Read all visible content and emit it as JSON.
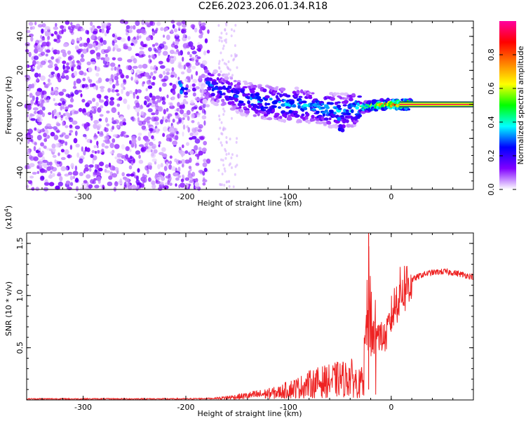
{
  "title": "C2E6.2023.206.01.34.R18",
  "colors": {
    "snr_line": "#ee2222",
    "axis": "#000000",
    "background": "#ffffff"
  },
  "chart_data": [
    {
      "type": "heatmap",
      "title": "C2E6.2023.206.01.34.R18",
      "xlabel": "Height of straight line (km)",
      "ylabel": "Frequency (Hz)",
      "xlim": [
        -355,
        80
      ],
      "ylim": [
        -50,
        49
      ],
      "xticks": [
        -300,
        -200,
        -100,
        0
      ],
      "yticks": [
        -40,
        -20,
        0,
        20,
        40
      ],
      "colorbar": {
        "label": "Normalized spectral amplitude",
        "range": [
          0,
          1
        ],
        "ticks": [
          0.0,
          0.2,
          0.4,
          0.6,
          0.8
        ],
        "colormap": [
          "#ffffff",
          "#8000ff",
          "#0000ff",
          "#00ffff",
          "#00ff00",
          "#ffff00",
          "#ff8000",
          "#ff0000",
          "#ff00a0"
        ]
      },
      "ridge": {
        "height_km": [
          -205,
          -178,
          -160,
          -140,
          -120,
          -100,
          -80,
          -60,
          -45,
          -30,
          -20,
          -10,
          0,
          10,
          80
        ],
        "frequency_hz": [
          10,
          12,
          7,
          3,
          1,
          0,
          -1,
          -3,
          -4,
          -2,
          -1,
          0,
          0,
          0,
          0
        ],
        "amplitude": [
          0.25,
          0.3,
          0.25,
          0.3,
          0.35,
          0.35,
          0.35,
          0.35,
          0.3,
          0.45,
          0.6,
          0.7,
          0.8,
          0.85,
          0.9
        ]
      },
      "noise_region_km": [
        -355,
        -178
      ],
      "secondary_feature": {
        "height_km": -48,
        "frequency_hz": -12
      }
    },
    {
      "type": "line",
      "xlabel": "Height of straight line (km)",
      "ylabel": "SNR (10 * v/v)",
      "yscale_label": "(x10",
      "yscale_exp": "4",
      "yscale_close": ")",
      "xlim": [
        -355,
        80
      ],
      "ylim": [
        0,
        1.6
      ],
      "xticks": [
        -300,
        -200,
        -100,
        0
      ],
      "yticks": [
        0.5,
        1.0,
        1.5
      ],
      "series": [
        {
          "x": [
            -355,
            -300,
            -250,
            -200,
            -170,
            -150,
            -130,
            -110,
            -100,
            -90,
            -80,
            -70,
            -60,
            -50,
            -45,
            -40,
            -35,
            -30,
            -27,
            -25,
            -23,
            -22,
            -20,
            -18,
            -15,
            -10,
            -5,
            0,
            5,
            10,
            20,
            30,
            40,
            50,
            60,
            70,
            80
          ],
          "y": [
            0.01,
            0.01,
            0.01,
            0.01,
            0.015,
            0.03,
            0.05,
            0.07,
            0.1,
            0.12,
            0.15,
            0.17,
            0.18,
            0.2,
            0.2,
            0.22,
            0.18,
            0.15,
            0.3,
            0.6,
            0.8,
            1.0,
            0.85,
            0.6,
            0.7,
            0.6,
            0.6,
            0.8,
            0.95,
            1.05,
            1.15,
            1.2,
            1.22,
            1.23,
            1.22,
            1.2,
            1.18
          ]
        }
      ]
    }
  ]
}
